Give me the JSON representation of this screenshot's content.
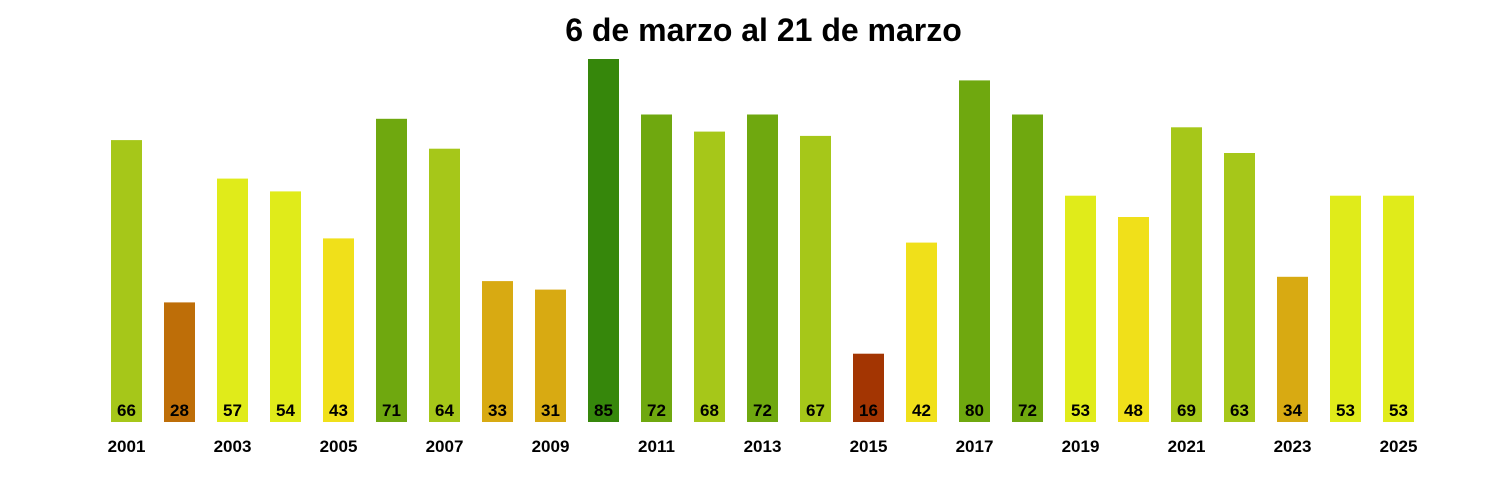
{
  "chart_data": {
    "type": "bar",
    "title": "6 de marzo al 21 de marzo",
    "xlabel": "",
    "ylabel": "",
    "grid": false,
    "ylim": [
      0,
      85
    ],
    "categories": [
      "2001",
      "2002",
      "2003",
      "2004",
      "2005",
      "2006",
      "2007",
      "2008",
      "2009",
      "2010",
      "2011",
      "2012",
      "2013",
      "2014",
      "2015",
      "2016",
      "2017",
      "2018",
      "2019",
      "2020",
      "2021",
      "2022",
      "2023",
      "2024",
      "2025"
    ],
    "x_tick_labels": [
      "2001",
      "",
      "2003",
      "",
      "2005",
      "",
      "2007",
      "",
      "2009",
      "",
      "2011",
      "",
      "2013",
      "",
      "2015",
      "",
      "2017",
      "",
      "2019",
      "",
      "2021",
      "",
      "2023",
      "",
      "2025"
    ],
    "values": [
      66,
      28,
      57,
      54,
      43,
      71,
      64,
      33,
      31,
      85,
      72,
      68,
      72,
      67,
      16,
      42,
      80,
      72,
      53,
      48,
      69,
      63,
      34,
      53,
      53
    ],
    "colors": [
      "#a6c719",
      "#be6e08",
      "#e0eb1a",
      "#e0eb1a",
      "#f0e01a",
      "#6fa80f",
      "#a6c719",
      "#d8aa12",
      "#d8aa12",
      "#36870b",
      "#6fa80f",
      "#a6c719",
      "#6fa80f",
      "#a6c719",
      "#a33502",
      "#f0e01a",
      "#6fa80f",
      "#6fa80f",
      "#e0eb1a",
      "#f0e01a",
      "#a6c719",
      "#a6c719",
      "#d8aa12",
      "#e0eb1a",
      "#e0eb1a"
    ]
  }
}
